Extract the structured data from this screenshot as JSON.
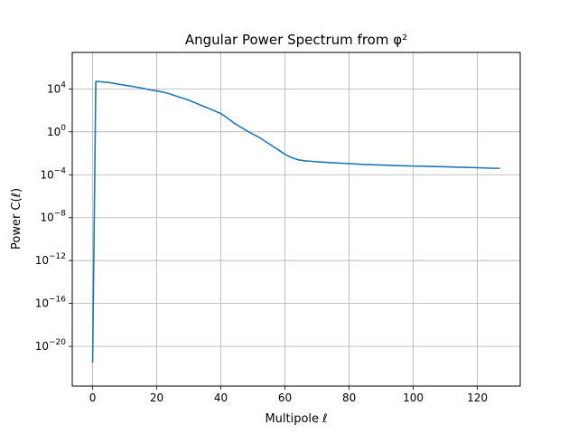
{
  "chart_data": {
    "type": "line",
    "title": "Angular Power Spectrum from φ²",
    "xlabel": "Multipole ℓ",
    "ylabel": "Power C(ℓ)",
    "xlim": [
      -6.35,
      133.35
    ],
    "ylim_log10": [
      -23.7,
      7.4
    ],
    "yscale": "log",
    "grid": true,
    "line_color": "#1f77b4",
    "x_ticks": [
      0,
      20,
      40,
      60,
      80,
      100,
      120
    ],
    "y_ticks_exponents": [
      -20,
      -16,
      -12,
      -8,
      -4,
      0,
      4
    ],
    "y_tick_base": "10",
    "x": [
      0,
      1,
      2,
      3,
      4,
      5,
      6,
      7,
      8,
      9,
      10,
      12,
      14,
      16,
      18,
      20,
      22,
      24,
      26,
      28,
      30,
      32,
      34,
      36,
      38,
      40,
      42,
      44,
      46,
      48,
      50,
      52,
      54,
      56,
      58,
      60,
      62,
      64,
      66,
      68,
      70,
      75,
      80,
      85,
      90,
      95,
      100,
      105,
      110,
      115,
      120,
      125,
      127
    ],
    "y": [
      3e-22,
      50000,
      48000,
      45000,
      42000,
      40000,
      35000,
      32000,
      28000,
      25000,
      22000,
      18000,
      14000,
      11000,
      8000,
      6500,
      5000,
      3500,
      2200,
      1400,
      900,
      500,
      280,
      160,
      90,
      50,
      20,
      7,
      3,
      1.3,
      0.6,
      0.3,
      0.12,
      0.05,
      0.02,
      0.008,
      0.004,
      0.0025,
      0.002,
      0.0018,
      0.0016,
      0.0013,
      0.0011,
      0.0009,
      0.0008,
      0.0007,
      0.00065,
      0.0006,
      0.00055,
      0.0005,
      0.00045,
      0.0004,
      0.0004
    ]
  }
}
